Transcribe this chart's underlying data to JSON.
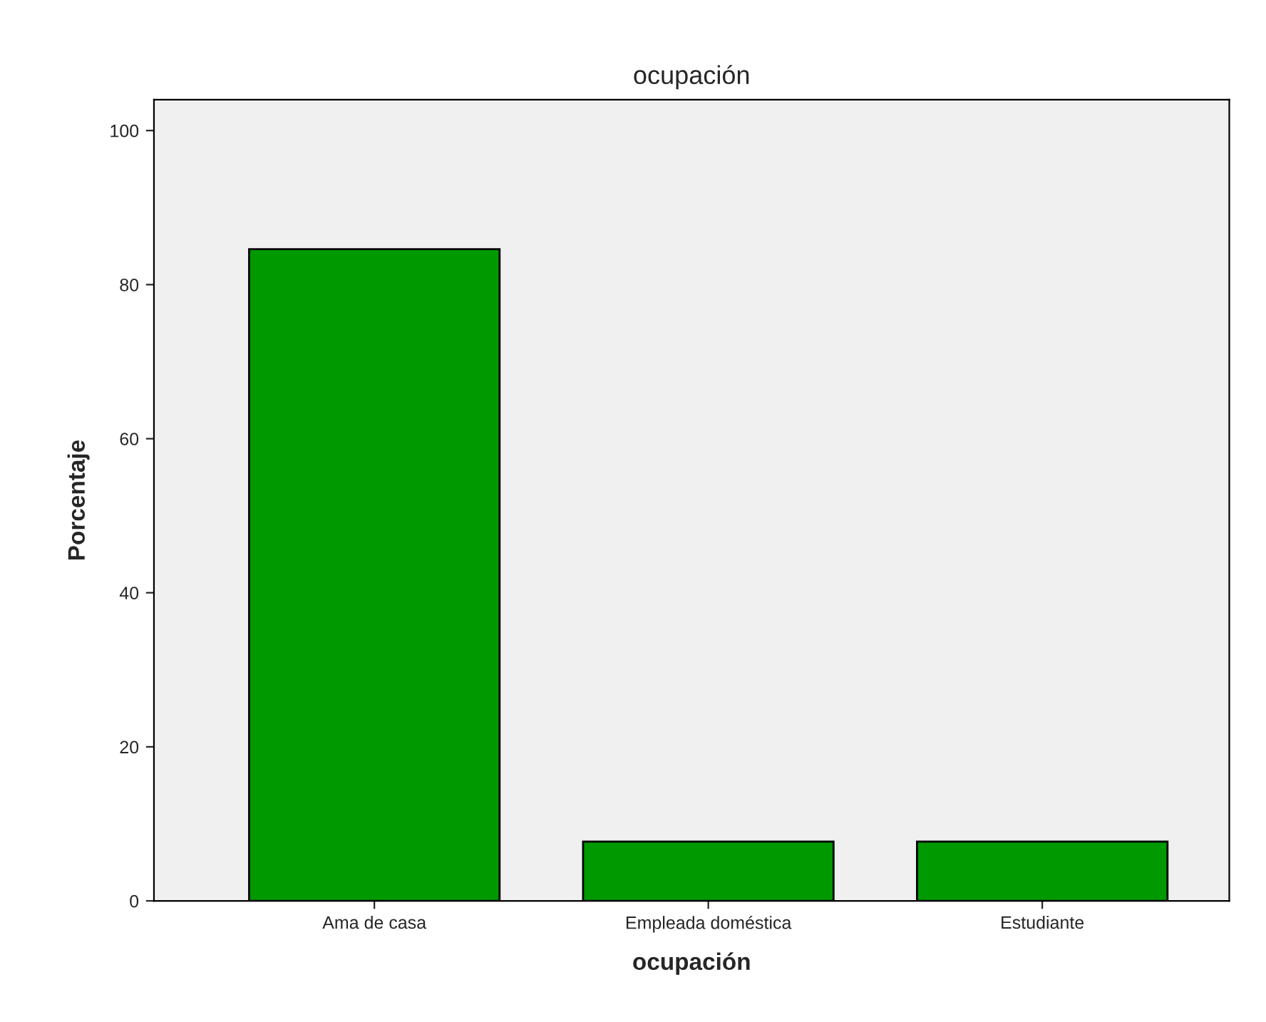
{
  "chart_data": {
    "type": "bar",
    "title": "ocupación",
    "xlabel": "ocupación",
    "ylabel": "Porcentaje",
    "categories": [
      "Ama de casa",
      "Empleada doméstica",
      "Estudiante"
    ],
    "values": [
      84.6,
      7.7,
      7.7
    ],
    "color": "#009900",
    "ylim": [
      0,
      104
    ],
    "yticks": [
      0,
      20,
      40,
      60,
      80,
      100
    ],
    "grid": false,
    "legend": false
  }
}
